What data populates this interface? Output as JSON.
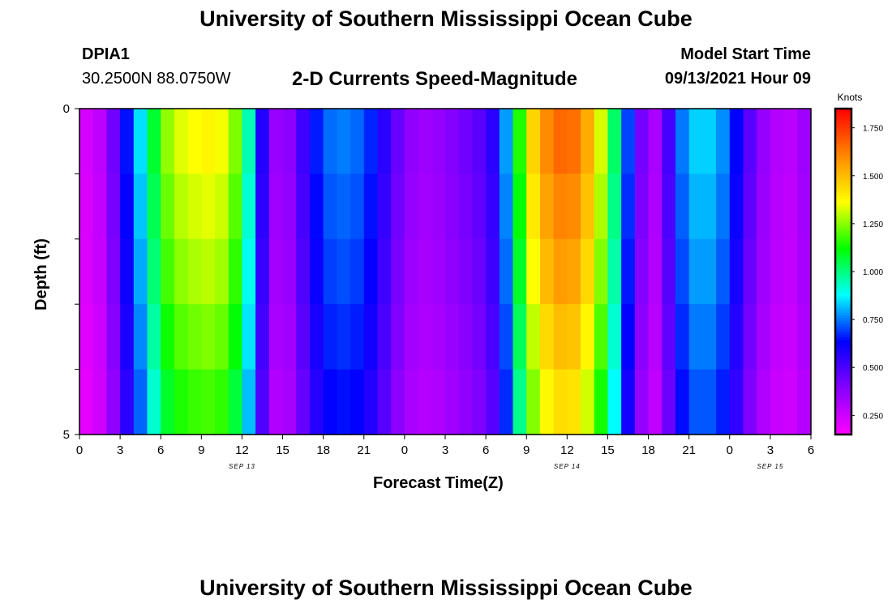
{
  "header": {
    "title_top": "University of Southern Mississippi Ocean Cube",
    "station_id": "DPIA1",
    "coords": "30.2500N  88.0750W",
    "chart_title": "2-D Currents Speed-Magnitude",
    "model_start_label": "Model Start Time",
    "model_start_value": "09/13/2021 Hour 09",
    "title_bottom": "University of Southern Mississippi Ocean Cube"
  },
  "chart_data": {
    "type": "heatmap",
    "xlabel": "Forecast Time(Z)",
    "ylabel": "Depth (ft)",
    "ylim": [
      0,
      5
    ],
    "y_tick_labels": [
      "0",
      "5"
    ],
    "x_tick_labels": [
      "0",
      "3",
      "6",
      "9",
      "12",
      "15",
      "18",
      "21",
      "0",
      "3",
      "6",
      "9",
      "12",
      "15",
      "18",
      "21",
      "0",
      "3",
      "6"
    ],
    "date_labels": [
      {
        "text": "SEP 13",
        "hour": 12
      },
      {
        "text": "SEP 14",
        "hour": 36
      },
      {
        "text": "SEP 15",
        "hour": 51
      }
    ],
    "x_hours_from_sep13_00z": [
      0,
      54
    ],
    "depth_layers": 5,
    "colorbar": {
      "unit": "Knots",
      "range": [
        0.15,
        1.85
      ],
      "tick_labels": [
        "0.250",
        "0.500",
        "0.750",
        "1.000",
        "1.250",
        "1.500",
        "1.750"
      ],
      "colors": [
        "#ff00ff",
        "#8800ff",
        "#0000ff",
        "#00ffff",
        "#00ff00",
        "#ffff00",
        "#ff8800",
        "#ff0000"
      ]
    },
    "speed_profile": [
      [
        0,
        0.22
      ],
      [
        1,
        0.25
      ],
      [
        2,
        0.32
      ],
      [
        3,
        0.55
      ],
      [
        4,
        0.75
      ],
      [
        5,
        0.95
      ],
      [
        6,
        1.2
      ],
      [
        7,
        1.32
      ],
      [
        8,
        1.35
      ],
      [
        9,
        1.38
      ],
      [
        10,
        1.38
      ],
      [
        11,
        1.33
      ],
      [
        12,
        1.15
      ],
      [
        13,
        0.75
      ],
      [
        14,
        0.4
      ],
      [
        15,
        0.32
      ],
      [
        16,
        0.45
      ],
      [
        17,
        0.6
      ],
      [
        18,
        0.72
      ],
      [
        19,
        0.76
      ],
      [
        20,
        0.75
      ],
      [
        21,
        0.72
      ],
      [
        22,
        0.62
      ],
      [
        23,
        0.5
      ],
      [
        24,
        0.4
      ],
      [
        25,
        0.35
      ],
      [
        26,
        0.35
      ],
      [
        27,
        0.38
      ],
      [
        28,
        0.42
      ],
      [
        29,
        0.45
      ],
      [
        30,
        0.5
      ],
      [
        31,
        0.62
      ],
      [
        32,
        0.95
      ],
      [
        33,
        1.35
      ],
      [
        34,
        1.55
      ],
      [
        35,
        1.65
      ],
      [
        36,
        1.68
      ],
      [
        37,
        1.62
      ],
      [
        38,
        1.45
      ],
      [
        39,
        1.2
      ],
      [
        40,
        0.85
      ],
      [
        41,
        0.55
      ],
      [
        42,
        0.3
      ],
      [
        43,
        0.35
      ],
      [
        44,
        0.68
      ],
      [
        45,
        0.82
      ],
      [
        46,
        0.85
      ],
      [
        47,
        0.82
      ],
      [
        48,
        0.72
      ],
      [
        49,
        0.55
      ],
      [
        50,
        0.4
      ],
      [
        51,
        0.33
      ],
      [
        52,
        0.28
      ],
      [
        53,
        0.3
      ],
      [
        54,
        0.4
      ]
    ],
    "layer_speed_factors": [
      1.0,
      0.97,
      0.94,
      0.9,
      0.86
    ]
  }
}
